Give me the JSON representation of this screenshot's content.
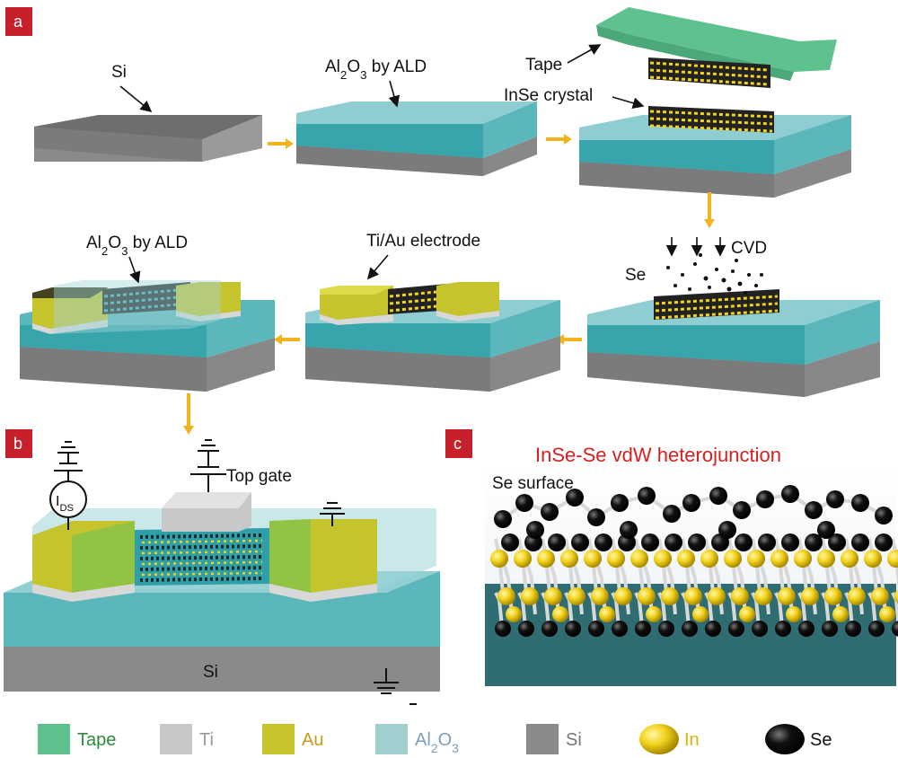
{
  "panels": {
    "a": "a",
    "b": "b",
    "c": "c"
  },
  "panel_a": {
    "step1_label": "Si",
    "step2_label": "Al2O3 by ALD",
    "step3_tape_label": "Tape",
    "step3_crystal_label": "InSe crystal",
    "step4_se_label": "Se",
    "step4_cvd_label": "CVD",
    "step5_label": "Ti/Au electrode",
    "step6_label": "Al2O3 by ALD"
  },
  "panel_b": {
    "top_gate_label": "Top gate",
    "ids_label": "IDS",
    "substrate_label": "Si"
  },
  "panel_c": {
    "title": "InSe-Se vdW heterojunction",
    "surface_label": "Se surface"
  },
  "legend": [
    {
      "label": "Tape",
      "color": "#5fc28e",
      "text_color": "#2f8a3c",
      "shape": "square"
    },
    {
      "label": "Ti",
      "color": "#c8c8c8",
      "text_color": "#9a9a9a",
      "shape": "square"
    },
    {
      "label": "Au",
      "color": "#c6c42c",
      "text_color": "#c89b16",
      "shape": "square"
    },
    {
      "label": "Al2O3",
      "color": "#9fcfcf",
      "text_color": "#7a9fbf",
      "shape": "square"
    },
    {
      "label": "Si",
      "color": "#8a8a8a",
      "text_color": "#777777",
      "shape": "square"
    },
    {
      "label": "In",
      "color": "#f2d21b",
      "text_color": "#e0b400",
      "shape": "sphere"
    },
    {
      "label": "Se",
      "color": "#111111",
      "text_color": "#111111",
      "shape": "sphere"
    }
  ]
}
